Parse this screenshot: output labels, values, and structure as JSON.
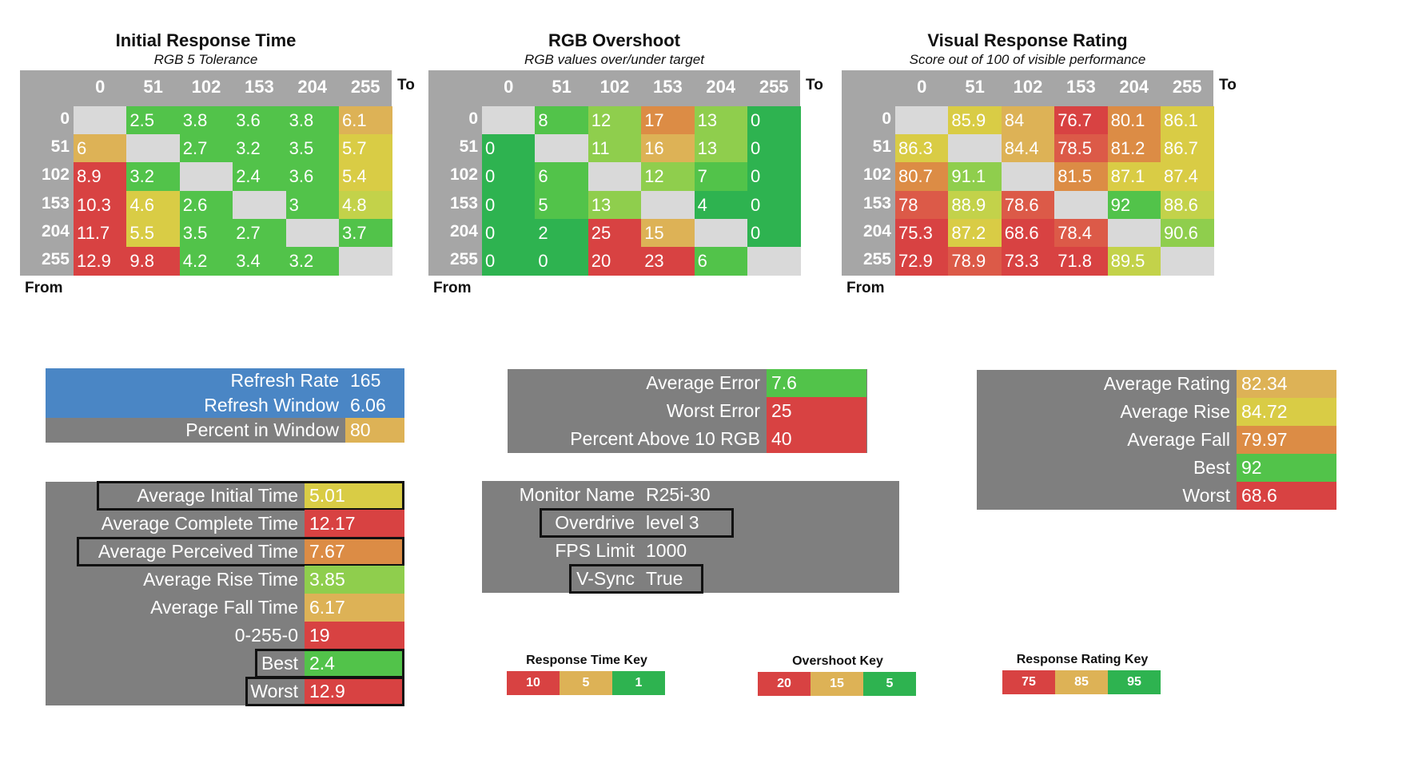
{
  "colors": {
    "green_dark": "#2eb350",
    "green": "#52c34a",
    "green_light": "#8fce4d",
    "yellow_green": "#c3d24a",
    "yellow": "#d9cc45",
    "amber": "#ddb256",
    "orange": "#dc8c45",
    "red_orange": "#dc5a48",
    "red": "#d84242",
    "diag": "#d9d9d9",
    "blue": "#4a86c5",
    "gray": "#7f7f7f"
  },
  "chart_data": [
    {
      "type": "heatmap",
      "title": "Initial Response Time",
      "subtitle": "RGB 5 Tolerance",
      "xlabel": "To",
      "ylabel": "From",
      "columns": [
        "0",
        "51",
        "102",
        "153",
        "204",
        "255"
      ],
      "rows": [
        "0",
        "51",
        "102",
        "153",
        "204",
        "255"
      ],
      "values": [
        [
          null,
          "2.5",
          "3.8",
          "3.6",
          "3.8",
          "6.1"
        ],
        [
          "6",
          null,
          "2.7",
          "3.2",
          "3.5",
          "5.7"
        ],
        [
          "8.9",
          "3.2",
          null,
          "2.4",
          "3.6",
          "5.4"
        ],
        [
          "10.3",
          "4.6",
          "2.6",
          null,
          "3",
          "4.8"
        ],
        [
          "11.7",
          "5.5",
          "3.5",
          "2.7",
          null,
          "3.7"
        ],
        [
          "12.9",
          "9.8",
          "4.2",
          "3.4",
          "3.2",
          null
        ]
      ],
      "cell_colors": [
        [
          "diag",
          "green",
          "green",
          "green",
          "green",
          "amber"
        ],
        [
          "amber",
          "diag",
          "green",
          "green",
          "green",
          "yellow"
        ],
        [
          "red",
          "green",
          "diag",
          "green",
          "green",
          "yellow"
        ],
        [
          "red",
          "yellow",
          "green",
          "diag",
          "green",
          "yellow_green"
        ],
        [
          "red",
          "yellow",
          "green",
          "green",
          "diag",
          "green"
        ],
        [
          "red",
          "red",
          "green",
          "green",
          "green",
          "diag"
        ]
      ]
    },
    {
      "type": "heatmap",
      "title": "RGB Overshoot",
      "subtitle": "RGB values over/under target",
      "xlabel": "To",
      "ylabel": "From",
      "columns": [
        "0",
        "51",
        "102",
        "153",
        "204",
        "255"
      ],
      "rows": [
        "0",
        "51",
        "102",
        "153",
        "204",
        "255"
      ],
      "values": [
        [
          null,
          "8",
          "12",
          "17",
          "13",
          "0"
        ],
        [
          "0",
          null,
          "11",
          "16",
          "13",
          "0"
        ],
        [
          "0",
          "6",
          null,
          "12",
          "7",
          "0"
        ],
        [
          "0",
          "5",
          "13",
          null,
          "4",
          "0"
        ],
        [
          "0",
          "2",
          "25",
          "15",
          null,
          "0"
        ],
        [
          "0",
          "0",
          "20",
          "23",
          "6",
          null
        ]
      ],
      "cell_colors": [
        [
          "diag",
          "green",
          "green_light",
          "orange",
          "green_light",
          "green_dark"
        ],
        [
          "green_dark",
          "diag",
          "green_light",
          "amber",
          "green_light",
          "green_dark"
        ],
        [
          "green_dark",
          "green",
          "diag",
          "green_light",
          "green",
          "green_dark"
        ],
        [
          "green_dark",
          "green",
          "green_light",
          "diag",
          "green_dark",
          "green_dark"
        ],
        [
          "green_dark",
          "green_dark",
          "red",
          "amber",
          "diag",
          "green_dark"
        ],
        [
          "green_dark",
          "green_dark",
          "red",
          "red",
          "green",
          "diag"
        ]
      ]
    },
    {
      "type": "heatmap",
      "title": "Visual Response Rating",
      "subtitle": "Score out of 100 of visible performance",
      "xlabel": "To",
      "ylabel": "From",
      "columns": [
        "0",
        "51",
        "102",
        "153",
        "204",
        "255"
      ],
      "rows": [
        "0",
        "51",
        "102",
        "153",
        "204",
        "255"
      ],
      "values": [
        [
          null,
          "85.9",
          "84",
          "76.7",
          "80.1",
          "86.1"
        ],
        [
          "86.3",
          null,
          "84.4",
          "78.5",
          "81.2",
          "86.7"
        ],
        [
          "80.7",
          "91.1",
          null,
          "81.5",
          "87.1",
          "87.4"
        ],
        [
          "78",
          "88.9",
          "78.6",
          null,
          "92",
          "88.6"
        ],
        [
          "75.3",
          "87.2",
          "68.6",
          "78.4",
          null,
          "90.6"
        ],
        [
          "72.9",
          "78.9",
          "73.3",
          "71.8",
          "89.5",
          null
        ]
      ],
      "cell_colors": [
        [
          "diag",
          "yellow",
          "amber",
          "red",
          "orange",
          "yellow"
        ],
        [
          "yellow",
          "diag",
          "amber",
          "red_orange",
          "orange",
          "yellow"
        ],
        [
          "orange",
          "green_light",
          "diag",
          "orange",
          "yellow",
          "yellow"
        ],
        [
          "red_orange",
          "yellow_green",
          "red_orange",
          "diag",
          "green",
          "yellow_green"
        ],
        [
          "red",
          "yellow",
          "red",
          "red_orange",
          "diag",
          "green_light"
        ],
        [
          "red",
          "red_orange",
          "red",
          "red",
          "yellow_green",
          "diag"
        ]
      ]
    }
  ],
  "refresh_panel": [
    {
      "label": "Refresh Rate",
      "value": "165",
      "bg": "blue",
      "val_bg": "blue"
    },
    {
      "label": "Refresh Window",
      "value": "6.06",
      "bg": "blue",
      "val_bg": "blue"
    },
    {
      "label": "Percent in Window",
      "value": "80",
      "bg": "gray",
      "val_bg": "amber"
    }
  ],
  "response_panel": [
    {
      "label": "Average Initial Time",
      "value": "5.01",
      "val_bg": "yellow",
      "outlined": true
    },
    {
      "label": "Average Complete Time",
      "value": "12.17",
      "val_bg": "red",
      "outlined": false
    },
    {
      "label": "Average Perceived Time",
      "value": "7.67",
      "val_bg": "orange",
      "outlined": true
    },
    {
      "label": "Average Rise Time",
      "value": "3.85",
      "val_bg": "green_light",
      "outlined": false
    },
    {
      "label": "Average Fall Time",
      "value": "6.17",
      "val_bg": "amber",
      "outlined": false
    },
    {
      "label": "0-255-0",
      "value": "19",
      "val_bg": "red",
      "outlined": false
    },
    {
      "label": "Best",
      "value": "2.4",
      "val_bg": "green",
      "outlined": true
    },
    {
      "label": "Worst",
      "value": "12.9",
      "val_bg": "red",
      "outlined": true
    }
  ],
  "overshoot_panel": [
    {
      "label": "Average Error",
      "value": "7.6",
      "val_bg": "green"
    },
    {
      "label": "Worst Error",
      "value": "25",
      "val_bg": "red"
    },
    {
      "label": "Percent Above 10 RGB",
      "value": "40",
      "val_bg": "red"
    }
  ],
  "monitor_panel": [
    {
      "label": "Monitor Name",
      "value": "R25i-30",
      "outlined": false
    },
    {
      "label": "Overdrive",
      "value": "level 3",
      "outlined": true
    },
    {
      "label": "FPS Limit",
      "value": "1000",
      "outlined": false
    },
    {
      "label": "V-Sync",
      "value": "True",
      "outlined": true
    }
  ],
  "rating_panel": [
    {
      "label": "Average Rating",
      "value": "82.34",
      "val_bg": "amber"
    },
    {
      "label": "Average Rise",
      "value": "84.72",
      "val_bg": "yellow"
    },
    {
      "label": "Average Fall",
      "value": "79.97",
      "val_bg": "orange"
    },
    {
      "label": "Best",
      "value": "92",
      "val_bg": "green"
    },
    {
      "label": "Worst",
      "value": "68.6",
      "val_bg": "red"
    }
  ],
  "keys": [
    {
      "title": "Response Time Key",
      "cells": [
        {
          "label": "10",
          "bg": "red"
        },
        {
          "label": "5",
          "bg": "amber"
        },
        {
          "label": "1",
          "bg": "green_dark"
        }
      ]
    },
    {
      "title": "Overshoot Key",
      "cells": [
        {
          "label": "20",
          "bg": "red"
        },
        {
          "label": "15",
          "bg": "amber"
        },
        {
          "label": "5",
          "bg": "green_dark"
        }
      ]
    },
    {
      "title": "Response Rating Key",
      "cells": [
        {
          "label": "75",
          "bg": "red"
        },
        {
          "label": "85",
          "bg": "amber"
        },
        {
          "label": "95",
          "bg": "green_dark"
        }
      ]
    }
  ]
}
